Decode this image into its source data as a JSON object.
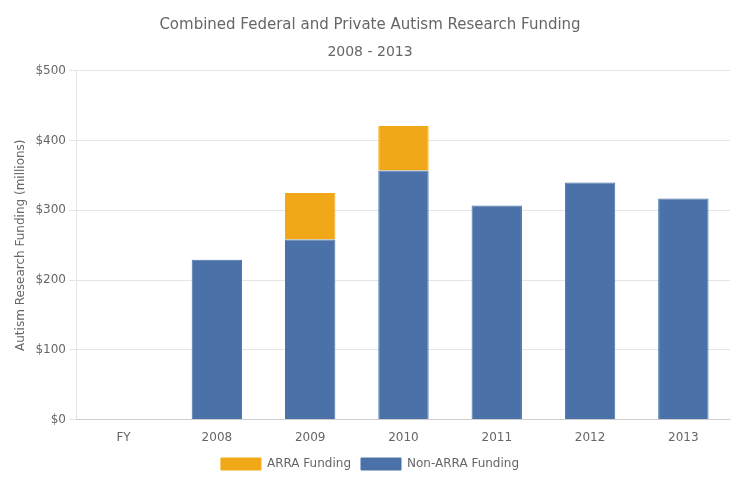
{
  "chart_data": {
    "type": "bar",
    "stacked": true,
    "title": "Combined Federal and Private Autism Research Funding",
    "subtitle": "2008 - 2013",
    "y_label": "Autism Research Funding (millions)",
    "categories": [
      "FY",
      "2008",
      "2009",
      "2010",
      "2011",
      "2012",
      "2013"
    ],
    "series": [
      {
        "name": "Non-ARRA Funding",
        "color": "#4a72a8",
        "values": [
          null,
          229,
          258,
          357,
          307,
          340,
          317
        ]
      },
      {
        "name": "ARRA Funding",
        "color": "#f0a818",
        "values": [
          null,
          0,
          67,
          64,
          0,
          0,
          0
        ]
      }
    ],
    "ylim": [
      0,
      500
    ],
    "yticks": [
      {
        "value": 0,
        "label": "$0"
      },
      {
        "value": 100,
        "label": "$100"
      },
      {
        "value": 200,
        "label": "$200"
      },
      {
        "value": 300,
        "label": "$300"
      },
      {
        "value": 400,
        "label": "$400"
      },
      {
        "value": 500,
        "label": "$500"
      }
    ],
    "grid": true,
    "legend": "bottom"
  }
}
